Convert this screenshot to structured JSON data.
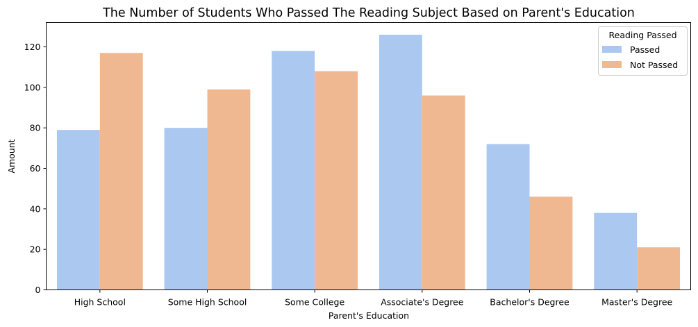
{
  "chart_data": {
    "type": "bar",
    "title": "The Number of Students Who Passed The Reading Subject Based on Parent's Education",
    "xlabel": "Parent's Education",
    "ylabel": "Amount",
    "categories": [
      "High School",
      "Some High School",
      "Some College",
      "Associate's Degree",
      "Bachelor's Degree",
      "Master's Degree"
    ],
    "series": [
      {
        "name": "Passed",
        "values": [
          79,
          80,
          118,
          126,
          72,
          38
        ],
        "color": "#abc9f0"
      },
      {
        "name": "Not Passed",
        "values": [
          117,
          99,
          108,
          96,
          46,
          21
        ],
        "color": "#f0b891"
      }
    ],
    "ylim": [
      0,
      132
    ],
    "yticks": [
      0,
      20,
      40,
      60,
      80,
      100,
      120
    ],
    "legend": {
      "title": "Reading Passed",
      "placement": "top-right"
    },
    "grid": false
  }
}
